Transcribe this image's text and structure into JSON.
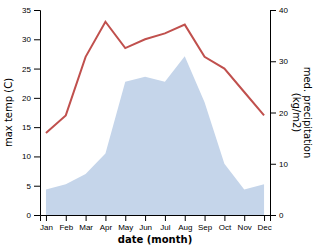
{
  "chart_data": {
    "type": "line",
    "xlabel": "date (month)",
    "ylabel": "max temp (C)",
    "y2label": "med. precipitation\n(kg/m2)",
    "categories": [
      "Jan",
      "Feb",
      "Mar",
      "Apr",
      "May",
      "Jun",
      "Jul",
      "Aug",
      "Sep",
      "Oct",
      "Nov",
      "Dec"
    ],
    "series": [
      {
        "type": "area",
        "axis": "y2",
        "color": "#c5d5ea",
        "values": [
          5,
          6,
          8,
          12,
          26,
          27,
          26,
          31,
          22,
          10,
          5,
          6
        ]
      },
      {
        "type": "line",
        "color": "#c0504d",
        "values": [
          14,
          17,
          27,
          33,
          28.5,
          30,
          31,
          32.5,
          27,
          25,
          21,
          17
        ]
      }
    ],
    "ylim": [
      0,
      35
    ],
    "yticks": [
      0,
      5,
      10,
      15,
      20,
      25,
      30,
      35
    ],
    "y2lim": [
      0,
      40
    ],
    "y2ticks": [
      0,
      10,
      20,
      30,
      40
    ],
    "grid": false
  }
}
